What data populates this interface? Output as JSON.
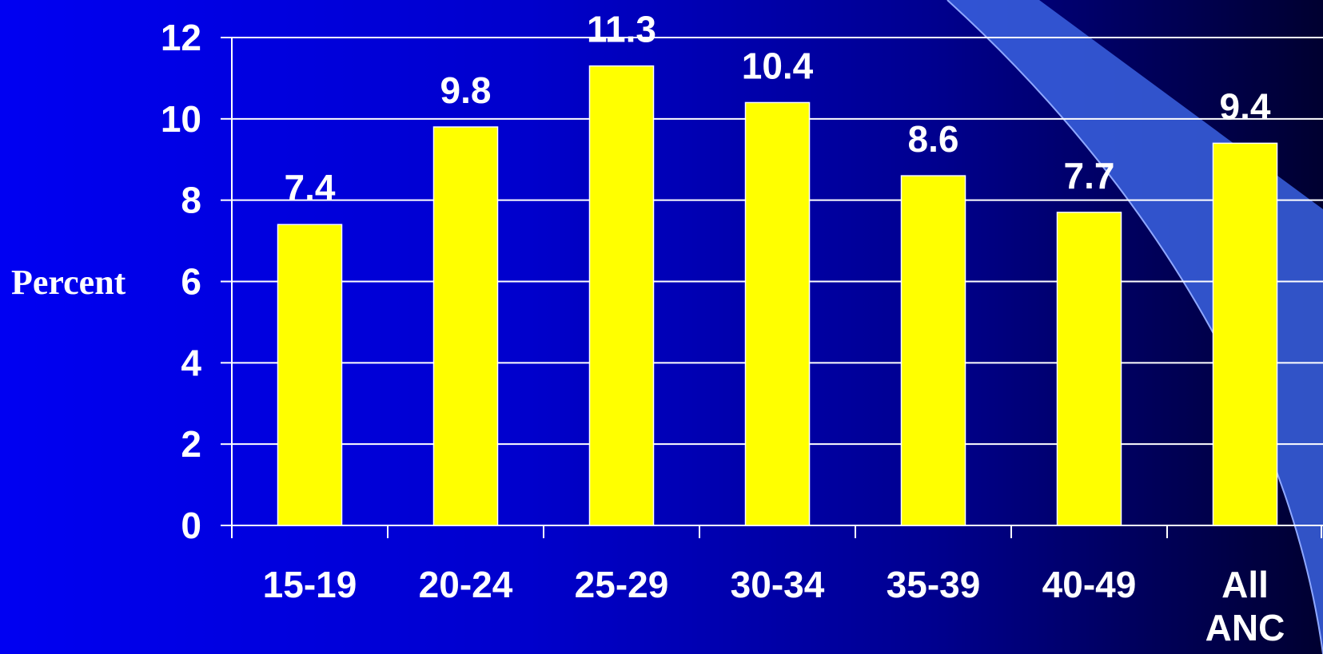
{
  "chart_data": {
    "type": "bar",
    "categories": [
      [
        "15-19"
      ],
      [
        "20-24"
      ],
      [
        "25-29"
      ],
      [
        "30-34"
      ],
      [
        "35-39"
      ],
      [
        "40-49"
      ],
      [
        "All",
        "ANC"
      ]
    ],
    "values": [
      7.4,
      9.8,
      11.3,
      10.4,
      8.6,
      7.7,
      9.4
    ],
    "data_labels": [
      "7.4",
      "9.8",
      "11.3",
      "10.4",
      "8.6",
      "7.7",
      "9.4"
    ],
    "ylabel": "Percent",
    "ylim": [
      0,
      12
    ],
    "yticks": [
      0,
      2,
      4,
      6,
      8,
      10,
      12
    ],
    "grid": true,
    "legend": "none",
    "colors": {
      "bar": "#ffff00",
      "text": "#ffffff",
      "grid": "#ffffff",
      "swoosh": "#3a62e0"
    }
  }
}
